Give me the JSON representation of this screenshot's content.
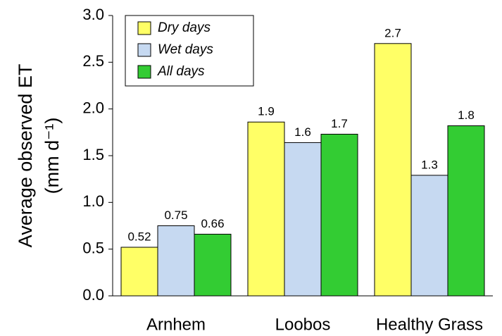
{
  "chart_data": {
    "type": "bar",
    "ylabel": [
      "Average observed ET",
      "(mm d⁻¹)"
    ],
    "categories": [
      "Arnhem",
      "Loobos",
      "Healthy Grass"
    ],
    "series": [
      {
        "name": "Dry days",
        "color": "#ffff66",
        "values": [
          0.52,
          1.86,
          2.7
        ],
        "value_labels": [
          "0.52",
          "1.9",
          "2.7"
        ]
      },
      {
        "name": "Wet days",
        "color": "#c6d9f1",
        "values": [
          0.75,
          1.64,
          1.29
        ],
        "value_labels": [
          "0.75",
          "1.6",
          "1.3"
        ]
      },
      {
        "name": "All days",
        "color": "#33cc33",
        "values": [
          0.66,
          1.73,
          1.82
        ],
        "value_labels": [
          "0.66",
          "1.7",
          "1.8"
        ]
      }
    ],
    "ylim": [
      0,
      3
    ],
    "yticks": [
      {
        "value": 0,
        "label": "0.0"
      },
      0.5,
      {
        "value": 1,
        "label": "1.0"
      },
      1.5,
      {
        "value": 2,
        "label": "2.0"
      },
      2.5,
      {
        "value": 3,
        "label": "3.0"
      }
    ],
    "legend": "upper left"
  }
}
